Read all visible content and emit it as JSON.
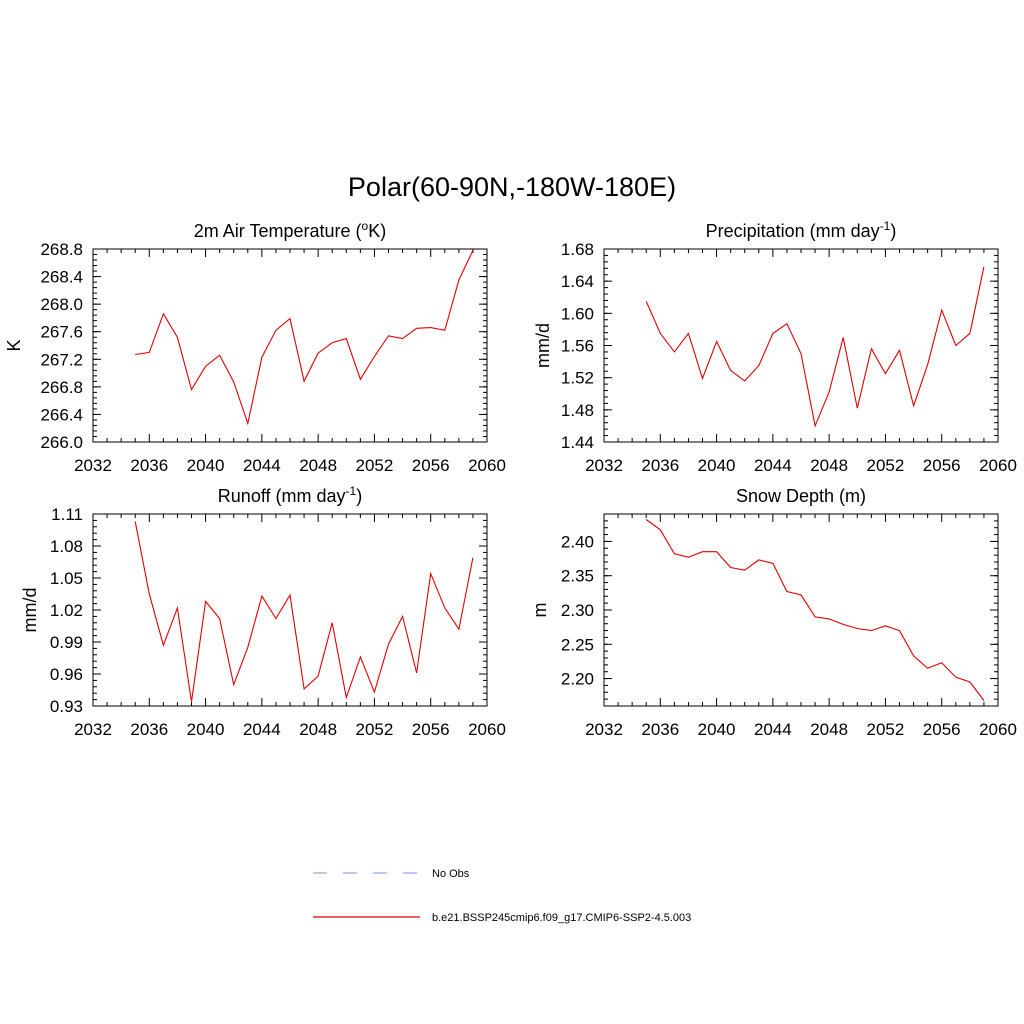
{
  "figure": {
    "title": "Polar(60-90N,-180W-180E)",
    "series_color": "#e00000",
    "obs_color": "#9aa0ff"
  },
  "legend": {
    "entries": [
      {
        "label": "No Obs",
        "style": "dashed",
        "color": "#9aa0ff"
      },
      {
        "label": "b.e21.BSSP245cmip6.f09_g17.CMIP6-SSP2-4.5.003",
        "style": "solid",
        "color": "#e00000"
      }
    ]
  },
  "chart_data": [
    {
      "type": "line",
      "title": "2m Air Temperature (",
      "title_sup": "o",
      "title_after": "K)",
      "ylabel": "K",
      "xlabel": "",
      "xlim": [
        2032,
        2060
      ],
      "xticks": [
        2032,
        2036,
        2040,
        2044,
        2048,
        2052,
        2056,
        2060
      ],
      "xtick_labels": [
        "2032",
        "2036",
        "2040",
        "2044",
        "2048",
        "2052",
        "2056",
        "2060"
      ],
      "ylim": [
        266.0,
        268.8
      ],
      "yticks": [
        266.0,
        266.4,
        266.8,
        267.2,
        267.6,
        268.0,
        268.4,
        268.8
      ],
      "ytick_labels": [
        "266.0",
        "266.4",
        "266.8",
        "267.2",
        "267.6",
        "268.0",
        "268.4",
        "268.8"
      ],
      "series": [
        {
          "name": "b.e21.BSSP245cmip6.f09_g17.CMIP6-SSP2-4.5.003",
          "x": [
            2035,
            2036,
            2037,
            2038,
            2039,
            2040,
            2041,
            2042,
            2043,
            2044,
            2045,
            2046,
            2047,
            2048,
            2049,
            2050,
            2051,
            2052,
            2053,
            2054,
            2055,
            2056,
            2057,
            2058,
            2059
          ],
          "values": [
            267.27,
            267.3,
            267.86,
            267.52,
            266.76,
            267.1,
            267.26,
            266.87,
            266.27,
            267.23,
            267.62,
            267.79,
            266.88,
            267.29,
            267.44,
            267.5,
            266.91,
            267.24,
            267.54,
            267.5,
            267.65,
            267.66,
            267.62,
            268.35,
            268.78
          ]
        }
      ]
    },
    {
      "type": "line",
      "title": "Precipitation (mm day",
      "title_sup": "-1",
      "title_after": ")",
      "ylabel": "mm/d",
      "xlabel": "",
      "xlim": [
        2032,
        2060
      ],
      "xticks": [
        2032,
        2036,
        2040,
        2044,
        2048,
        2052,
        2056,
        2060
      ],
      "xtick_labels": [
        "2032",
        "2036",
        "2040",
        "2044",
        "2048",
        "2052",
        "2056",
        "2060"
      ],
      "ylim": [
        1.44,
        1.68
      ],
      "yticks": [
        1.44,
        1.48,
        1.52,
        1.56,
        1.6,
        1.64,
        1.68
      ],
      "ytick_labels": [
        "1.44",
        "1.48",
        "1.52",
        "1.56",
        "1.60",
        "1.64",
        "1.68"
      ],
      "series": [
        {
          "name": "b.e21.BSSP245cmip6.f09_g17.CMIP6-SSP2-4.5.003",
          "x": [
            2035,
            2036,
            2037,
            2038,
            2039,
            2040,
            2041,
            2042,
            2043,
            2044,
            2045,
            2046,
            2047,
            2048,
            2049,
            2050,
            2051,
            2052,
            2053,
            2054,
            2055,
            2056,
            2057,
            2058,
            2059
          ],
          "values": [
            1.615,
            1.575,
            1.552,
            1.575,
            1.519,
            1.565,
            1.529,
            1.516,
            1.535,
            1.575,
            1.587,
            1.55,
            1.46,
            1.502,
            1.57,
            1.482,
            1.556,
            1.525,
            1.554,
            1.485,
            1.536,
            1.604,
            1.56,
            1.575,
            1.658
          ]
        }
      ]
    },
    {
      "type": "line",
      "title": "Runoff (mm day",
      "title_sup": "-1",
      "title_after": ")",
      "ylabel": "mm/d",
      "xlabel": "",
      "xlim": [
        2032,
        2060
      ],
      "xticks": [
        2032,
        2036,
        2040,
        2044,
        2048,
        2052,
        2056,
        2060
      ],
      "xtick_labels": [
        "2032",
        "2036",
        "2040",
        "2044",
        "2048",
        "2052",
        "2056",
        "2060"
      ],
      "ylim": [
        0.93,
        1.11
      ],
      "yticks": [
        0.93,
        0.96,
        0.99,
        1.02,
        1.05,
        1.08,
        1.11
      ],
      "ytick_labels": [
        "0.93",
        "0.96",
        "0.99",
        "1.02",
        "1.05",
        "1.08",
        "1.11"
      ],
      "series": [
        {
          "name": "b.e21.BSSP245cmip6.f09_g17.CMIP6-SSP2-4.5.003",
          "x": [
            2035,
            2036,
            2037,
            2038,
            2039,
            2040,
            2041,
            2042,
            2043,
            2044,
            2045,
            2046,
            2047,
            2048,
            2049,
            2050,
            2051,
            2052,
            2053,
            2054,
            2055,
            2056,
            2057,
            2058,
            2059
          ],
          "values": [
            1.103,
            1.035,
            0.987,
            1.022,
            0.934,
            1.028,
            1.012,
            0.95,
            0.985,
            1.033,
            1.012,
            1.034,
            0.946,
            0.958,
            1.008,
            0.938,
            0.976,
            0.943,
            0.988,
            1.014,
            0.961,
            1.054,
            1.022,
            1.002,
            1.069
          ]
        }
      ]
    },
    {
      "type": "line",
      "title": "Snow Depth (m)",
      "title_sup": "",
      "title_after": "",
      "ylabel": "m",
      "xlabel": "",
      "xlim": [
        2032,
        2060
      ],
      "xticks": [
        2032,
        2036,
        2040,
        2044,
        2048,
        2052,
        2056,
        2060
      ],
      "xtick_labels": [
        "2032",
        "2036",
        "2040",
        "2044",
        "2048",
        "2052",
        "2056",
        "2060"
      ],
      "ylim": [
        2.16,
        2.44
      ],
      "yticks": [
        2.2,
        2.25,
        2.3,
        2.35,
        2.4
      ],
      "ytick_labels": [
        "2.20",
        "2.25",
        "2.30",
        "2.35",
        "2.40"
      ],
      "series": [
        {
          "name": "b.e21.BSSP245cmip6.f09_g17.CMIP6-SSP2-4.5.003",
          "x": [
            2035,
            2036,
            2037,
            2038,
            2039,
            2040,
            2041,
            2042,
            2043,
            2044,
            2045,
            2046,
            2047,
            2048,
            2049,
            2050,
            2051,
            2052,
            2053,
            2054,
            2055,
            2056,
            2057,
            2058,
            2059
          ],
          "values": [
            2.432,
            2.417,
            2.382,
            2.377,
            2.385,
            2.385,
            2.362,
            2.358,
            2.373,
            2.368,
            2.327,
            2.322,
            2.29,
            2.287,
            2.279,
            2.273,
            2.27,
            2.277,
            2.27,
            2.233,
            2.215,
            2.223,
            2.202,
            2.195,
            2.168
          ]
        }
      ]
    }
  ]
}
